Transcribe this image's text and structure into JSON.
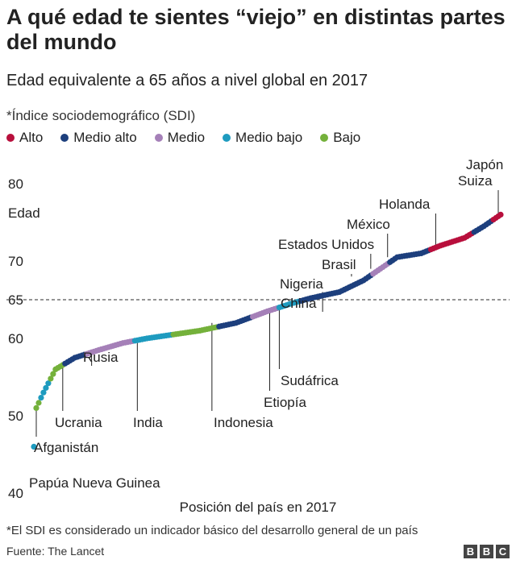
{
  "header": {
    "title": "A qué edad te sientes “viejo” en distintas partes del mundo",
    "subtitle": "Edad equivalente a 65 años a nivel global en 2017"
  },
  "legend": {
    "label": "*Índice sociodemográfico (SDI)",
    "items": [
      {
        "label": "Alto",
        "color": "#b80f3c"
      },
      {
        "label": "Medio alto",
        "color": "#1d3f7d"
      },
      {
        "label": "Medio",
        "color": "#a580b8"
      },
      {
        "label": "Medio bajo",
        "color": "#1e9bbf"
      },
      {
        "label": "Bajo",
        "color": "#74b13b"
      }
    ]
  },
  "chart_data": {
    "type": "scatter",
    "title": "A qué edad te sientes “viejo” en distintas partes del mundo",
    "subtitle": "Edad equivalente a 65 años a nivel global en 2017",
    "xlabel": "Posición del país en 2017",
    "ylabel": "Edad",
    "ylim": [
      40,
      80
    ],
    "yticks": [
      40,
      50,
      60,
      65,
      70,
      80
    ],
    "xlim": [
      1,
      195
    ],
    "reference_line": {
      "y": 65,
      "style": "dashed"
    },
    "grid": false,
    "legend_position": "top-left",
    "curve_key_points": [
      {
        "rank": 1,
        "age": 46,
        "sdi": "Medio bajo"
      },
      {
        "rank": 2,
        "age": 51,
        "sdi": "Bajo"
      },
      {
        "rank": 5,
        "age": 53,
        "sdi": "Medio bajo"
      },
      {
        "rank": 10,
        "age": 56,
        "sdi": "Bajo"
      },
      {
        "rank": 18,
        "age": 57.5,
        "sdi": "Medio alto"
      },
      {
        "rank": 28,
        "age": 58.5,
        "sdi": "Medio"
      },
      {
        "rank": 38,
        "age": 59.4,
        "sdi": "Medio"
      },
      {
        "rank": 48,
        "age": 60,
        "sdi": "Medio bajo"
      },
      {
        "rank": 70,
        "age": 61,
        "sdi": "Bajo"
      },
      {
        "rank": 85,
        "age": 62,
        "sdi": "Medio alto"
      },
      {
        "rank": 98,
        "age": 63.5,
        "sdi": "Medio"
      },
      {
        "rank": 108,
        "age": 64.5,
        "sdi": "Medio bajo"
      },
      {
        "rank": 116,
        "age": 65.2,
        "sdi": "Medio alto"
      },
      {
        "rank": 128,
        "age": 66,
        "sdi": "Medio alto"
      },
      {
        "rank": 138,
        "age": 67.5,
        "sdi": "Medio alto"
      },
      {
        "rank": 145,
        "age": 69,
        "sdi": "Medio"
      },
      {
        "rank": 152,
        "age": 70.5,
        "sdi": "Medio alto"
      },
      {
        "rank": 162,
        "age": 71,
        "sdi": "Medio alto"
      },
      {
        "rank": 170,
        "age": 72,
        "sdi": "Alto"
      },
      {
        "rank": 180,
        "age": 73,
        "sdi": "Alto"
      },
      {
        "rank": 188,
        "age": 74.5,
        "sdi": "Medio alto"
      },
      {
        "rank": 195,
        "age": 76,
        "sdi": "Alto"
      }
    ],
    "annotations": [
      {
        "label": "Papúa Nueva Guinea",
        "rank": 1,
        "age": 46
      },
      {
        "label": "Afganistán",
        "rank": 2,
        "age": 51
      },
      {
        "label": "Ucrania",
        "rank": 13,
        "age": 56.5
      },
      {
        "label": "Rusia",
        "rank": 25,
        "age": 58.3
      },
      {
        "label": "India",
        "rank": 44,
        "age": 60
      },
      {
        "label": "Indonesia",
        "rank": 75,
        "age": 62
      },
      {
        "label": "Etiopía",
        "rank": 99,
        "age": 63.5
      },
      {
        "label": "Sudáfrica",
        "rank": 103,
        "age": 64
      },
      {
        "label": "China",
        "rank": 121,
        "age": 66
      },
      {
        "label": "Nigeria",
        "rank": 122,
        "age": 66
      },
      {
        "label": "Brasil",
        "rank": 133,
        "age": 68
      },
      {
        "label": "Estados Unidos",
        "rank": 141,
        "age": 69
      },
      {
        "label": "México",
        "rank": 148,
        "age": 70.5
      },
      {
        "label": "Holanda",
        "rank": 168,
        "age": 72
      },
      {
        "label": "Suiza",
        "rank": 194,
        "age": 76
      },
      {
        "label": "Japón",
        "rank": 195,
        "age": 76
      }
    ]
  },
  "footer": {
    "note": "*El SDI es considerado un indicador básico del desarrollo general de un país",
    "source": "Fuente: The Lancet",
    "logo_letters": [
      "B",
      "B",
      "C"
    ]
  }
}
